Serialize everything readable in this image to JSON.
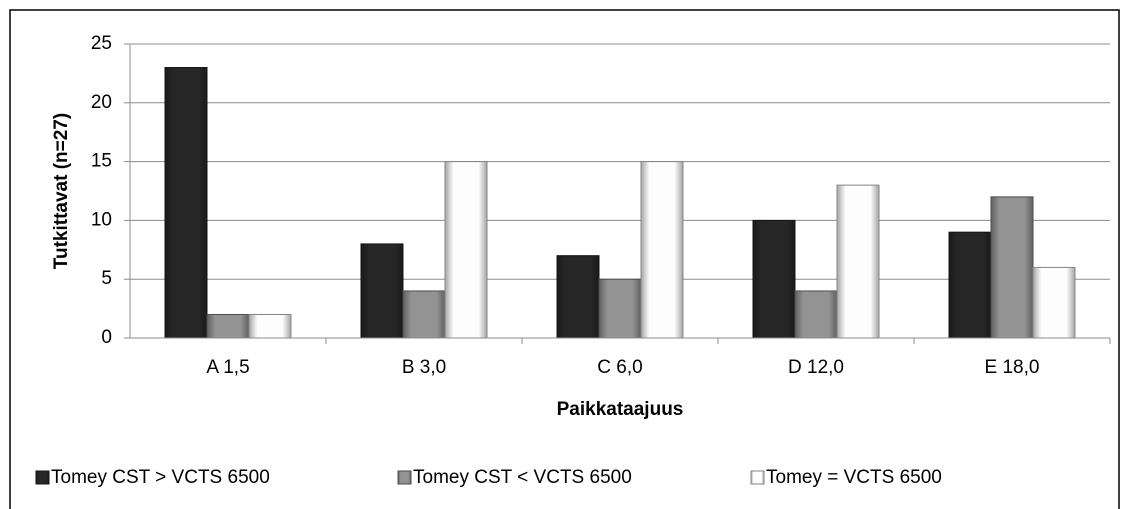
{
  "chart_data": {
    "type": "bar",
    "x_label": "Paikkataajuus",
    "y_label": "Tutkittavat  (n=27)",
    "categories": [
      "A 1,5",
      "B 3,0",
      "C 6,0",
      "D 12,0",
      "E 18,0"
    ],
    "series": [
      {
        "name": "Tomey CST > VCTS 6500",
        "color": "#222222",
        "values": [
          23,
          8,
          7,
          10,
          9
        ]
      },
      {
        "name": "Tomey CST < VCTS 6500",
        "color": "#808080",
        "values": [
          2,
          4,
          5,
          4,
          12
        ]
      },
      {
        "name": "Tomey = VCTS 6500",
        "color": "#dcdcdc",
        "values": [
          2,
          15,
          15,
          13,
          6
        ]
      }
    ],
    "ylim": [
      0,
      25
    ],
    "yticks": [
      0,
      5,
      10,
      15,
      20,
      25
    ],
    "grid": true,
    "legend": "bottom"
  }
}
